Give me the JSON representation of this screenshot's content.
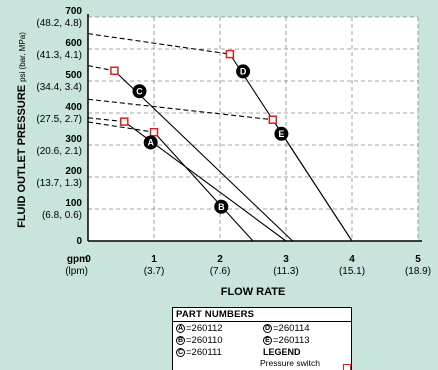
{
  "chart_data": {
    "type": "line",
    "title": "",
    "xlabel": "FLOW RATE",
    "ylabel": "FLUID OUTLET PRESSURE",
    "ylabel_unit": "psi (bar, MPa)",
    "xlim": [
      0,
      5
    ],
    "ylim": [
      0,
      700
    ],
    "x_ticks": [
      {
        "value": 0,
        "label": "0",
        "sub": ""
      },
      {
        "value": 1,
        "label": "1",
        "sub": "(3.7)"
      },
      {
        "value": 2,
        "label": "2",
        "sub": "(7.6)"
      },
      {
        "value": 3,
        "label": "3",
        "sub": "(11.3)"
      },
      {
        "value": 4,
        "label": "4",
        "sub": "(15.1)"
      },
      {
        "value": 5,
        "label": "5",
        "sub": "(18.9)"
      }
    ],
    "x_unit_label": "gpm",
    "x_unit_sub": "(lpm)",
    "y_ticks": [
      {
        "value": 0,
        "label": "0",
        "sub": ""
      },
      {
        "value": 100,
        "label": "100",
        "sub": "(6.8, 0.6)"
      },
      {
        "value": 200,
        "label": "200",
        "sub": "(13.7, 1.3)"
      },
      {
        "value": 300,
        "label": "300",
        "sub": "(20.6, 2.1)"
      },
      {
        "value": 400,
        "label": "400",
        "sub": "(27.5, 2.7)"
      },
      {
        "value": 500,
        "label": "500",
        "sub": "(34.4, 3.4)"
      },
      {
        "value": 600,
        "label": "600",
        "sub": "(41.3, 4.1)"
      },
      {
        "value": 700,
        "label": "700",
        "sub": "(48.2, 4.8)"
      }
    ],
    "grid": true,
    "series": [
      {
        "name": "A",
        "dashed": [
          [
            0,
            372
          ],
          [
            1.0,
            340
          ]
        ],
        "solid": [
          [
            1.0,
            340
          ],
          [
            2.5,
            0
          ]
        ],
        "switch_point": [
          1.0,
          340
        ],
        "label_at": [
          0.95,
          308
        ]
      },
      {
        "name": "B",
        "dashed": [
          [
            0,
            385
          ],
          [
            0.55,
            373
          ]
        ],
        "solid": [
          [
            0.55,
            373
          ],
          [
            3.0,
            0
          ]
        ],
        "switch_point": [
          0.55,
          373
        ],
        "label_at": [
          2.02,
          107
        ]
      },
      {
        "name": "C",
        "dashed": [
          [
            0,
            548
          ],
          [
            0.4,
            532
          ]
        ],
        "solid": [
          [
            0.4,
            532
          ],
          [
            3.1,
            0
          ]
        ],
        "switch_point": [
          0.4,
          532
        ],
        "label_at": [
          0.78,
          468
        ]
      },
      {
        "name": "D",
        "dashed": [
          [
            0,
            648
          ],
          [
            2.15,
            584
          ]
        ],
        "solid": [
          [
            2.15,
            584
          ],
          [
            4.0,
            0
          ]
        ],
        "switch_point": [
          2.15,
          584
        ],
        "label_at": [
          2.35,
          530
        ]
      },
      {
        "name": "E",
        "dashed": [
          [
            0,
            443
          ],
          [
            2.8,
            379
          ]
        ],
        "solid": [
          [
            2.8,
            379
          ],
          [
            4.0,
            0
          ]
        ],
        "switch_point": [
          2.8,
          379
        ],
        "label_at": [
          2.93,
          335
        ]
      }
    ]
  },
  "legend": {
    "part_numbers_title": "PART NUMBERS",
    "parts": [
      {
        "letter": "A",
        "number": "=260112"
      },
      {
        "letter": "D",
        "number": "=260114"
      },
      {
        "letter": "B",
        "number": "=260110"
      },
      {
        "letter": "E",
        "number": "=260113"
      },
      {
        "letter": "C",
        "number": "=260111"
      }
    ],
    "legend_title": "LEGEND",
    "legend_item": "Pressure switch opens"
  },
  "colors": {
    "background": "#c8e4dc",
    "plot_background": "#ffffff",
    "switch_marker": "#e02020",
    "line": "#000000",
    "grid": "#888888"
  }
}
